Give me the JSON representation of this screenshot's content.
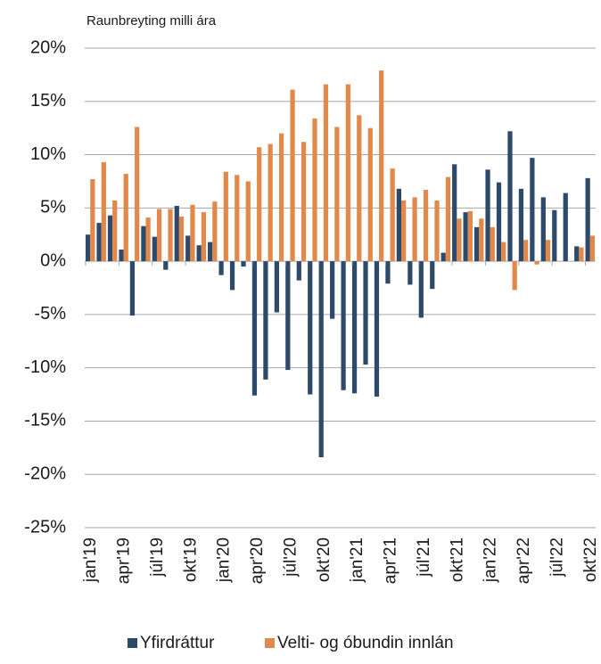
{
  "chart_data": {
    "type": "bar",
    "subtitle": "Raunbreyting milli ára",
    "categories": [
      "jan'19",
      null,
      null,
      "apr'19",
      null,
      null,
      "júl'19",
      null,
      null,
      "okt'19",
      null,
      null,
      "jan'20",
      null,
      null,
      "apr'20",
      null,
      null,
      "júl'20",
      null,
      null,
      "okt'20",
      null,
      null,
      "jan'21",
      null,
      null,
      "apr'21",
      null,
      null,
      "júl'21",
      null,
      null,
      "okt'21",
      null,
      null,
      "jan'22",
      null,
      null,
      "apr'22",
      null,
      null,
      "júl'22",
      null,
      null,
      "okt'22"
    ],
    "series": [
      {
        "name": "Yfirdráttur",
        "color": "#2e4a6b",
        "values": [
          2.5,
          3.6,
          4.3,
          1.1,
          -5.1,
          3.3,
          2.3,
          -0.8,
          5.2,
          2.4,
          1.5,
          1.8,
          -1.3,
          -2.7,
          -0.5,
          -12.6,
          -11.1,
          -4.8,
          -10.2,
          -1.8,
          -12.5,
          -18.4,
          -5.4,
          -12.1,
          -12.4,
          -9.7,
          -12.7,
          -2.1,
          6.8,
          -2.2,
          -5.3,
          -2.6,
          0.8,
          9.1,
          4.6,
          3.2,
          8.6,
          7.4,
          12.2,
          6.8,
          9.7,
          6.0,
          4.8,
          6.4,
          1.4,
          7.8
        ]
      },
      {
        "name": "Velti- og óbundin innlán",
        "color": "#e0894a",
        "values": [
          7.7,
          9.3,
          5.7,
          8.2,
          12.6,
          4.1,
          4.9,
          4.9,
          4.2,
          5.3,
          4.6,
          5.6,
          8.4,
          8.1,
          7.5,
          10.7,
          11.0,
          12.0,
          16.1,
          11.2,
          13.4,
          16.6,
          12.6,
          16.6,
          13.7,
          12.5,
          17.9,
          8.7,
          5.7,
          6.0,
          6.7,
          5.7,
          7.9,
          4.0,
          4.7,
          4.0,
          3.2,
          1.8,
          -2.7,
          2.0,
          -0.3,
          2.0,
          0,
          0,
          1.3,
          2.4
        ]
      }
    ],
    "ylim": [
      -25,
      20
    ],
    "yticks": [
      {
        "value": -25,
        "label": "-25%"
      },
      {
        "value": -20,
        "label": "-20%"
      },
      {
        "value": -15,
        "label": "-15%"
      },
      {
        "value": -10,
        "label": "-10%"
      },
      {
        "value": -5,
        "label": "-5%"
      },
      {
        "value": 0,
        "label": "0%"
      },
      {
        "value": 5,
        "label": "5%"
      },
      {
        "value": 10,
        "label": "10%"
      },
      {
        "value": 15,
        "label": "15%"
      },
      {
        "value": 20,
        "label": "20%"
      }
    ],
    "grid": true,
    "legend": "bottom"
  }
}
